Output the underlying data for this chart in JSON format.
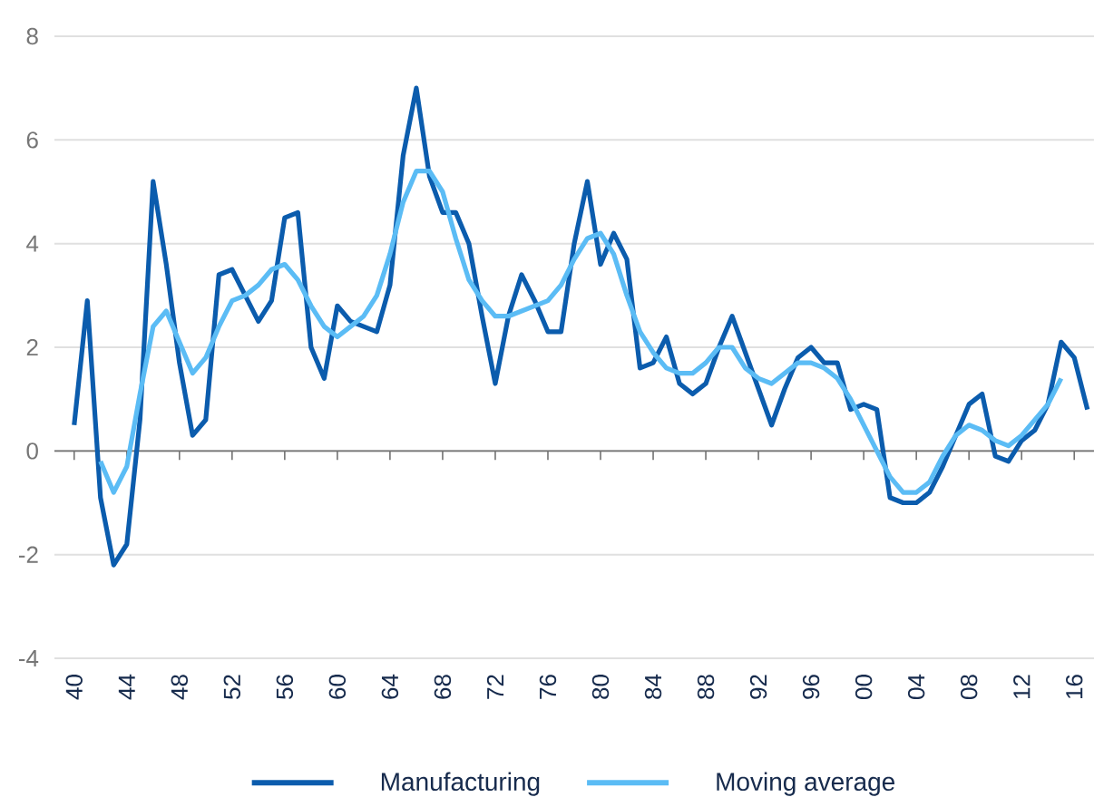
{
  "chart_data": {
    "type": "line",
    "x": [
      1940,
      1941,
      1942,
      1943,
      1944,
      1945,
      1946,
      1947,
      1948,
      1949,
      1950,
      1951,
      1952,
      1953,
      1954,
      1955,
      1956,
      1957,
      1958,
      1959,
      1960,
      1961,
      1962,
      1963,
      1964,
      1965,
      1966,
      1967,
      1968,
      1969,
      1970,
      1971,
      1972,
      1973,
      1974,
      1975,
      1976,
      1977,
      1978,
      1979,
      1980,
      1981,
      1982,
      1983,
      1984,
      1985,
      1986,
      1987,
      1988,
      1989,
      1990,
      1991,
      1992,
      1993,
      1994,
      1995,
      1996,
      1997,
      1998,
      1999,
      2000,
      2001,
      2002,
      2003,
      2004,
      2005,
      2006,
      2007,
      2008,
      2009,
      2010,
      2011,
      2012,
      2013,
      2014,
      2015,
      2016,
      2017
    ],
    "series": [
      {
        "name": "Manufacturing",
        "color": "#0b5cad",
        "values": [
          0.5,
          2.9,
          -0.9,
          -2.2,
          -1.8,
          0.6,
          5.2,
          3.6,
          1.7,
          0.3,
          0.6,
          3.4,
          3.5,
          3.0,
          2.5,
          2.9,
          4.5,
          4.6,
          2.0,
          1.4,
          2.8,
          2.5,
          2.4,
          2.3,
          3.2,
          5.7,
          7.0,
          5.3,
          4.6,
          4.6,
          4.0,
          2.6,
          1.3,
          2.6,
          3.4,
          2.9,
          2.3,
          2.3,
          4.0,
          5.2,
          3.6,
          4.2,
          3.7,
          1.6,
          1.7,
          2.2,
          1.3,
          1.1,
          1.3,
          2.0,
          2.6,
          1.9,
          1.2,
          0.5,
          1.2,
          1.8,
          2.0,
          1.7,
          1.7,
          0.8,
          0.9,
          0.8,
          -0.9,
          -1.0,
          -1.0,
          -0.8,
          -0.3,
          0.3,
          0.9,
          1.1,
          -0.1,
          -0.2,
          0.2,
          0.4,
          0.9,
          2.1,
          1.8,
          0.8
        ]
      },
      {
        "name": "Moving average",
        "color": "#5bbcf5",
        "values": [
          null,
          null,
          -0.2,
          -0.8,
          -0.3,
          1.1,
          2.4,
          2.7,
          2.1,
          1.5,
          1.8,
          2.4,
          2.9,
          3.0,
          3.2,
          3.5,
          3.6,
          3.3,
          2.8,
          2.4,
          2.2,
          2.4,
          2.6,
          3.0,
          3.8,
          4.8,
          5.4,
          5.4,
          5.0,
          4.1,
          3.3,
          2.9,
          2.6,
          2.6,
          2.7,
          2.8,
          2.9,
          3.2,
          3.7,
          4.1,
          4.2,
          3.8,
          3.0,
          2.3,
          1.9,
          1.6,
          1.5,
          1.5,
          1.7,
          2.0,
          2.0,
          1.6,
          1.4,
          1.3,
          1.5,
          1.7,
          1.7,
          1.6,
          1.4,
          1.0,
          0.5,
          0.0,
          -0.5,
          -0.8,
          -0.8,
          -0.6,
          -0.1,
          0.3,
          0.5,
          0.4,
          0.2,
          0.1,
          0.3,
          0.6,
          0.9,
          1.4,
          null,
          null
        ]
      }
    ],
    "xlim": [
      1938.5,
      2017.5
    ],
    "xticks": [
      {
        "value": 1940,
        "label": "40"
      },
      {
        "value": 1944,
        "label": "44"
      },
      {
        "value": 1948,
        "label": "48"
      },
      {
        "value": 1952,
        "label": "52"
      },
      {
        "value": 1956,
        "label": "56"
      },
      {
        "value": 1960,
        "label": "60"
      },
      {
        "value": 1964,
        "label": "64"
      },
      {
        "value": 1968,
        "label": "68"
      },
      {
        "value": 1972,
        "label": "72"
      },
      {
        "value": 1976,
        "label": "76"
      },
      {
        "value": 1980,
        "label": "80"
      },
      {
        "value": 1984,
        "label": "84"
      },
      {
        "value": 1988,
        "label": "88"
      },
      {
        "value": 1992,
        "label": "92"
      },
      {
        "value": 1996,
        "label": "96"
      },
      {
        "value": 2000,
        "label": "00"
      },
      {
        "value": 2004,
        "label": "04"
      },
      {
        "value": 2008,
        "label": "08"
      },
      {
        "value": 2012,
        "label": "12"
      },
      {
        "value": 2016,
        "label": "16"
      }
    ],
    "ylim": [
      -4,
      8
    ],
    "yticks": [
      -4,
      -2,
      0,
      2,
      4,
      6,
      8
    ],
    "grid": "y",
    "legend": "bottom",
    "line_style": "solid"
  }
}
